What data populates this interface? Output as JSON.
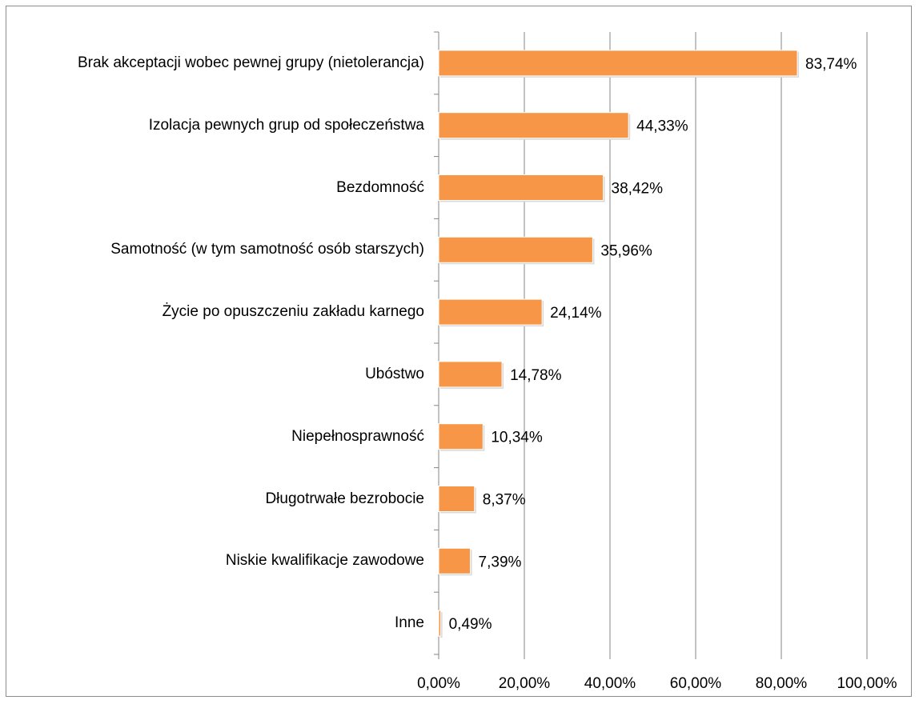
{
  "chart_data": {
    "type": "bar",
    "orientation": "horizontal",
    "categories": [
      "Brak akceptacji wobec pewnej grupy (nietolerancja)",
      "Izolacja pewnych grup od społeczeństwa",
      "Bezdomność",
      "Samotność (w tym samotność osób starszych)",
      "Życie po opuszczeniu zakładu karnego",
      "Ubóstwo",
      "Niepełnosprawność",
      "Długotrwałe bezrobocie",
      "Niskie kwalifikacje zawodowe",
      "Inne"
    ],
    "values": [
      83.74,
      44.33,
      38.42,
      35.96,
      24.14,
      14.78,
      10.34,
      8.37,
      7.39,
      0.49
    ],
    "value_labels": [
      "83,74%",
      "44,33%",
      "38,42%",
      "35,96%",
      "24,14%",
      "14,78%",
      "10,34%",
      "8,37%",
      "7,39%",
      "0,49%"
    ],
    "color": "#f79646",
    "xlim": [
      0,
      100
    ],
    "xticks": [
      {
        "value": 0,
        "label": "0,00%"
      },
      {
        "value": 20,
        "label": "20,00%"
      },
      {
        "value": 40,
        "label": "40,00%"
      },
      {
        "value": 60,
        "label": "60,00%"
      },
      {
        "value": 80,
        "label": "80,00%"
      },
      {
        "value": 100,
        "label": "100,00%"
      }
    ],
    "grid": true
  }
}
